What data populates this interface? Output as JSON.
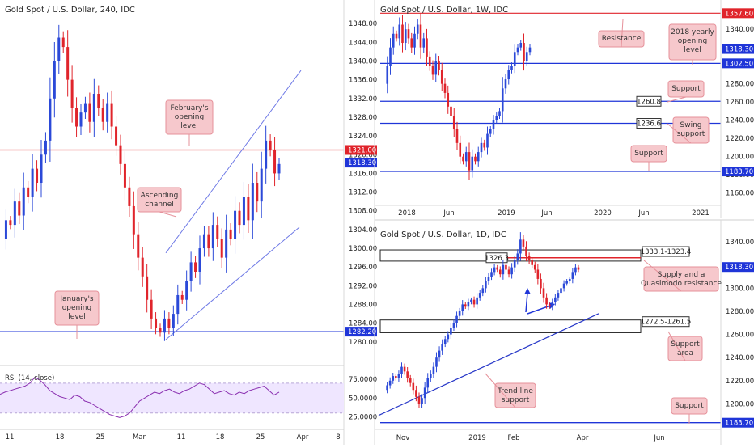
{
  "colors": {
    "bull": "#2b49d8",
    "bear": "#e0242b",
    "resistance": "#e0242b",
    "support": "#1f35d8",
    "callout_fill": "#f6c8cc",
    "callout_stroke": "#e6919a",
    "channel": "#6f7ae6",
    "rsi_line": "#8a2fb0",
    "rsi_band": "#efe6ff"
  },
  "chart_data": [
    {
      "id": "h4",
      "type": "candlestick",
      "title": "Gold Spot / U.S. Dollar, 240, IDC",
      "ylim": [
        1276,
        1352
      ],
      "yticks": [
        "1348.00",
        "1344.00",
        "1340.00",
        "1336.00",
        "1332.00",
        "1328.00",
        "1324.00",
        "1320.00",
        "1316.00",
        "1312.00",
        "1308.00",
        "1304.00",
        "1300.00",
        "1296.00",
        "1292.00",
        "1288.00",
        "1284.00",
        "1280.00"
      ],
      "xticks": [
        "11",
        "18",
        "25",
        "Mar",
        "11",
        "18",
        "25",
        "Apr",
        "8"
      ],
      "price_labels": [
        {
          "text": "1321.00",
          "value": 1321.0,
          "color": "#e0242b"
        },
        {
          "text": "1318.30",
          "value": 1318.3,
          "color": "#1f35d8"
        },
        {
          "text": "1282.20",
          "value": 1282.2,
          "color": "#1f35d8"
        }
      ],
      "levels": [
        {
          "value": 1321.0,
          "color": "#e0242b"
        },
        {
          "value": 1282.2,
          "color": "#1f35d8"
        }
      ],
      "channel": {
        "lower": [
          [
            1280.5,
            1304.5
          ]
        ],
        "upper": [
          [
            1299,
            1338
          ]
        ]
      },
      "close_path": [
        1302,
        1306,
        1305,
        1310,
        1307,
        1313,
        1311,
        1317,
        1314,
        1320,
        1323,
        1332,
        1340,
        1345,
        1343,
        1336,
        1330,
        1326,
        1329,
        1331,
        1327,
        1333,
        1330,
        1327,
        1331,
        1326,
        1322,
        1318,
        1313,
        1309,
        1303,
        1298,
        1294,
        1289,
        1285,
        1283,
        1282,
        1285,
        1283,
        1286,
        1290,
        1289,
        1293,
        1297,
        1295,
        1300,
        1303,
        1300,
        1305,
        1302,
        1298,
        1304,
        1302,
        1308,
        1305,
        1311,
        1306,
        1314,
        1310,
        1317,
        1323,
        1321,
        1316,
        1318
      ],
      "annotations": {
        "feb": "February's\nopening\nlevel",
        "channel": "Ascending\nchannel",
        "jan": "January's\nopening\nlevel"
      },
      "rsi": {
        "label": "RSI (14, close)",
        "ylim": [
          20,
          85
        ],
        "yticks": [
          "75.0000",
          "50.0000",
          "25.0000"
        ],
        "values": [
          55,
          58,
          60,
          62,
          64,
          66,
          70,
          78,
          74,
          68,
          60,
          56,
          52,
          50,
          48,
          54,
          52,
          46,
          44,
          40,
          36,
          32,
          28,
          26,
          24,
          26,
          30,
          38,
          46,
          50,
          54,
          58,
          56,
          60,
          62,
          58,
          56,
          60,
          62,
          66,
          70,
          68,
          62,
          56,
          58,
          60,
          56,
          54,
          58,
          56,
          60,
          62,
          64,
          66,
          60,
          54,
          58
        ]
      }
    },
    {
      "id": "w1",
      "type": "candlestick",
      "title": "Gold Spot / U.S. Dollar, 1W, IDC",
      "ylim": [
        1150,
        1365
      ],
      "yticks": [
        "1340.00",
        "1320.00",
        "1300.00",
        "1280.00",
        "1260.00",
        "1240.00",
        "1220.00",
        "1200.00",
        "1180.00",
        "1160.00"
      ],
      "xticks": [
        "2018",
        "Jun",
        "2019",
        "Jun",
        "2020",
        "Jun",
        "2021"
      ],
      "price_labels": [
        {
          "text": "1357.60",
          "value": 1357.6,
          "color": "#e0242b"
        },
        {
          "text": "1318.30",
          "value": 1318.3,
          "color": "#1f35d8"
        },
        {
          "text": "1302.50",
          "value": 1302.5,
          "color": "#1f35d8"
        },
        {
          "text": "1183.70",
          "value": 1183.7,
          "color": "#1f35d8"
        }
      ],
      "levels": [
        {
          "value": 1357.6,
          "color": "#e0242b",
          "label": "",
          "label_value": ""
        },
        {
          "value": 1302.5,
          "color": "#1f35d8"
        },
        {
          "value": 1260.8,
          "color": "#1f35d8",
          "label": "1260.8"
        },
        {
          "value": 1236.6,
          "color": "#1f35d8",
          "label": "1236.6"
        },
        {
          "value": 1183.7,
          "color": "#1f35d8"
        }
      ],
      "close_path": [
        1280,
        1300,
        1320,
        1335,
        1330,
        1345,
        1325,
        1340,
        1330,
        1320,
        1335,
        1345,
        1320,
        1330,
        1310,
        1300,
        1290,
        1305,
        1295,
        1280,
        1270,
        1255,
        1245,
        1230,
        1215,
        1200,
        1195,
        1205,
        1185,
        1200,
        1195,
        1205,
        1215,
        1210,
        1225,
        1230,
        1240,
        1245,
        1250,
        1275,
        1285,
        1295,
        1300,
        1315,
        1320,
        1325,
        1305,
        1315,
        1320
      ],
      "annotations": {
        "resistance": "Resistance",
        "yearly": "2018 yearly\nopening\nlevel",
        "support1": "Support",
        "swing": "Swing\nsupport",
        "support2": "Support"
      }
    },
    {
      "id": "d1",
      "type": "candlestick",
      "title": "Gold Spot / U.S. Dollar, 1D, IDC",
      "ylim": [
        1180,
        1352
      ],
      "yticks": [
        "1340.00",
        "1320.00",
        "1300.00",
        "1280.00",
        "1260.00",
        "1240.00",
        "1220.00",
        "1200.00"
      ],
      "xticks": [
        "Nov",
        "2019",
        "Feb",
        "Apr",
        "Jun"
      ],
      "price_labels": [
        {
          "text": "1318.30",
          "value": 1318.3,
          "color": "#1f35d8"
        },
        {
          "text": "1183.70",
          "value": 1183.7,
          "color": "#1f35d8"
        }
      ],
      "zones": [
        {
          "label": "1333.1-1323.4",
          "top": 1333.1,
          "bottom": 1323.4
        },
        {
          "label": "1272.5-1261.5",
          "top": 1272.5,
          "bottom": 1261.5
        }
      ],
      "resistance_level": {
        "value": 1326.3,
        "label": "1326.3"
      },
      "trendline": [
        [
          1190,
          1278
        ]
      ],
      "close_path": [
        1212,
        1216,
        1220,
        1224,
        1222,
        1226,
        1232,
        1228,
        1222,
        1218,
        1212,
        1206,
        1200,
        1205,
        1214,
        1222,
        1226,
        1232,
        1240,
        1246,
        1252,
        1256,
        1260,
        1266,
        1270,
        1276,
        1280,
        1286,
        1284,
        1288,
        1290,
        1286,
        1292,
        1296,
        1300,
        1306,
        1310,
        1314,
        1318,
        1316,
        1312,
        1320,
        1316,
        1312,
        1318,
        1324,
        1330,
        1342,
        1336,
        1328,
        1324,
        1320,
        1316,
        1308,
        1300,
        1292,
        1286,
        1284,
        1288,
        1292,
        1296,
        1300,
        1304,
        1306,
        1308,
        1314,
        1318,
        1316
      ],
      "annotations": {
        "supply": "Supply and a\nQuasimodo resistance",
        "support_area": "Support\narea",
        "trend": "Trend line\nsupport",
        "support": "Support"
      }
    }
  ]
}
